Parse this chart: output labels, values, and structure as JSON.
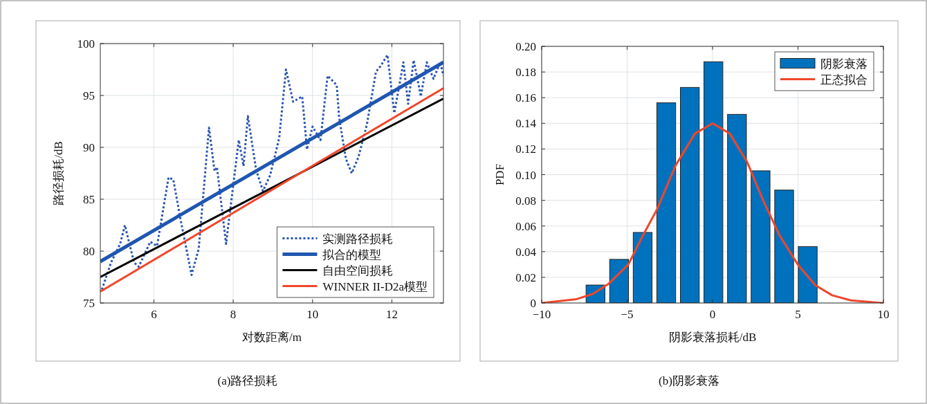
{
  "chart_data": [
    {
      "type": "line",
      "title": "(a)路径损耗",
      "xlabel": "对数距离/m",
      "ylabel": "路径损耗/dB",
      "xlim": [
        4.65,
        13.3
      ],
      "ylim": [
        75,
        100
      ],
      "xticks": [
        6,
        8,
        10,
        12
      ],
      "yticks": [
        75,
        80,
        85,
        90,
        95,
        100
      ],
      "grid": true,
      "legend": "bottom right",
      "series": [
        {
          "name": "实测路径损耗",
          "color": "#2a55b0",
          "line_style": "dotted",
          "x": [
            4.69,
            4.92,
            5.15,
            5.27,
            5.5,
            5.62,
            5.91,
            6.08,
            6.37,
            6.49,
            6.66,
            6.95,
            7.13,
            7.39,
            7.53,
            7.59,
            7.82,
            8.14,
            8.26,
            8.37,
            8.58,
            8.75,
            8.93,
            9.16,
            9.33,
            9.51,
            9.74,
            9.86,
            10.0,
            10.2,
            10.38,
            10.61,
            10.67,
            10.84,
            10.99,
            11.16,
            11.37,
            11.6,
            11.71,
            11.89,
            12.06,
            12.18,
            12.29,
            12.41,
            12.55,
            12.73,
            12.88,
            13.05,
            13.22,
            13.3
          ],
          "values": [
            76.3,
            78.9,
            80.7,
            82.5,
            78.9,
            78.5,
            80.9,
            80.5,
            87.1,
            86.9,
            83.3,
            77.7,
            80.2,
            91.9,
            87.7,
            88.1,
            80.7,
            90.7,
            88.2,
            93.0,
            87.8,
            85.8,
            87.3,
            90.9,
            97.5,
            94.4,
            94.9,
            89.8,
            92.0,
            90.7,
            96.9,
            96.0,
            92.9,
            88.9,
            87.5,
            89.1,
            92.2,
            97.3,
            97.8,
            98.9,
            93.3,
            95.8,
            98.2,
            94.2,
            98.4,
            94.9,
            98.2,
            96.6,
            98.2,
            96.9
          ]
        },
        {
          "name": "拟合的模型",
          "color": "#1f56b0",
          "line_style": "solid",
          "x": [
            4.65,
            13.3
          ],
          "values": [
            79.0,
            98.2
          ]
        },
        {
          "name": "自由空间损耗",
          "color": "#000000",
          "line_style": "solid",
          "x": [
            4.65,
            13.3
          ],
          "values": [
            77.5,
            94.7
          ]
        },
        {
          "name": "WINNER II-D2a模型",
          "color": "#f0462a",
          "line_style": "solid",
          "x": [
            4.65,
            13.3
          ],
          "values": [
            76.1,
            95.7
          ]
        }
      ]
    },
    {
      "type": "histogram",
      "title": "(b)阴影衰落",
      "xlabel": "阴影衰落损耗/dB",
      "ylabel": "PDF",
      "xlim": [
        -10,
        10
      ],
      "ylim": [
        0,
        0.2
      ],
      "xticks": [
        {
          "value": -10,
          "label": "−10"
        },
        {
          "value": -5,
          "label": "−5"
        },
        0,
        5,
        10
      ],
      "yticks": [
        0,
        0.02,
        0.04,
        0.06,
        0.08,
        {
          "value": 0.1,
          "label": "0.10"
        },
        0.12,
        0.14,
        0.16,
        0.18,
        {
          "value": 0.2,
          "label": "0.20"
        }
      ],
      "grid": true,
      "legend": "top right",
      "bins": [
        -7.54,
        -6.16,
        -4.78,
        -3.4,
        -2.02,
        -0.64,
        0.74,
        2.12,
        3.5,
        4.88,
        6.26
      ],
      "series": [
        {
          "name": "阴影衰落",
          "color": "#0072bd",
          "values": [
            0.014,
            0.034,
            0.055,
            0.156,
            0.168,
            0.188,
            0.147,
            0.103,
            0.088,
            0.044
          ]
        },
        {
          "name": "正态拟合",
          "type": "line",
          "color": "#f0462a",
          "line_style": "solid",
          "x": [
            -10,
            -7.96,
            -7.02,
            -6.08,
            -4.93,
            -4.06,
            -3.25,
            -2.17,
            -1.03,
            0,
            1.01,
            2.02,
            2.96,
            3.91,
            4.99,
            6.0,
            7.0,
            8.1,
            9.9,
            10
          ],
          "values": [
            0.0,
            0.003,
            0.007,
            0.015,
            0.03,
            0.053,
            0.073,
            0.107,
            0.132,
            0.14,
            0.132,
            0.11,
            0.08,
            0.053,
            0.03,
            0.014,
            0.006,
            0.002,
            0.0,
            0.0
          ]
        }
      ]
    }
  ]
}
